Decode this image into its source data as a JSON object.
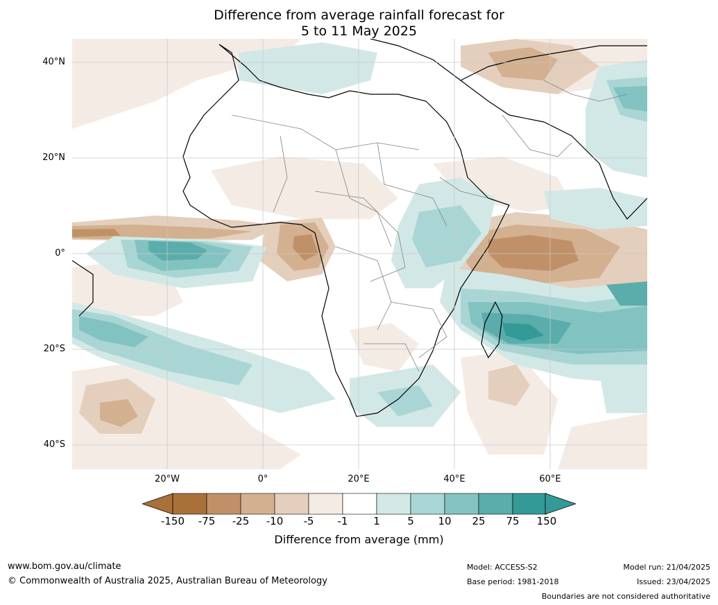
{
  "title": {
    "line1": "Difference from average rainfall forecast for",
    "line2": "5 to 11 May 2025"
  },
  "axes": {
    "lat_labels": [
      "40°N",
      "20°N",
      "0°",
      "20°S",
      "40°S"
    ],
    "lon_labels": [
      "20°W",
      "0°",
      "20°E",
      "40°E",
      "60°E"
    ]
  },
  "colorbar": {
    "ticks": [
      "-150",
      "-75",
      "-25",
      "-10",
      "-5",
      "-1",
      "1",
      "5",
      "10",
      "25",
      "75",
      "150"
    ],
    "colors": [
      "#a9703a",
      "#c09168",
      "#d3b08f",
      "#e4cfbd",
      "#f4ebe5",
      "#ffffff",
      "#d2e8e6",
      "#a9d6d4",
      "#82c3c2",
      "#5aadab",
      "#339a97"
    ],
    "under_color": "#a9703a",
    "over_color": "#339a97",
    "label": "Difference from average (mm)"
  },
  "footer": {
    "website": "www.bom.gov.au/climate",
    "copyright": "© Commonwealth of Australia 2025, Australian Bureau of Meteorology",
    "model": "Model: ACCESS-S2",
    "base_period": "Base period: 1981-2018",
    "model_run": "Model run: 21/04/2025",
    "issued": "Issued: 23/04/2025",
    "disclaimer": "Boundaries are not considered authoritative"
  }
}
